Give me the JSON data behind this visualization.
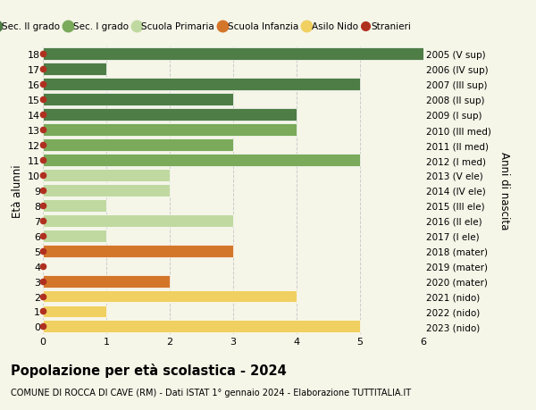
{
  "ages": [
    18,
    17,
    16,
    15,
    14,
    13,
    12,
    11,
    10,
    9,
    8,
    7,
    6,
    5,
    4,
    3,
    2,
    1,
    0
  ],
  "right_labels": [
    "2005 (V sup)",
    "2006 (IV sup)",
    "2007 (III sup)",
    "2008 (II sup)",
    "2009 (I sup)",
    "2010 (III med)",
    "2011 (II med)",
    "2012 (I med)",
    "2013 (V ele)",
    "2014 (IV ele)",
    "2015 (III ele)",
    "2016 (II ele)",
    "2017 (I ele)",
    "2018 (mater)",
    "2019 (mater)",
    "2020 (mater)",
    "2021 (nido)",
    "2022 (nido)",
    "2023 (nido)"
  ],
  "values": [
    6,
    1,
    5,
    3,
    4,
    4,
    3,
    5,
    2,
    2,
    1,
    3,
    1,
    3,
    0,
    2,
    4,
    1,
    5
  ],
  "bar_colors": [
    "#4e7d45",
    "#4e7d45",
    "#4e7d45",
    "#4e7d45",
    "#4e7d45",
    "#7aaa5a",
    "#7aaa5a",
    "#7aaa5a",
    "#c0d9a0",
    "#c0d9a0",
    "#c0d9a0",
    "#c0d9a0",
    "#c0d9a0",
    "#d4762a",
    "#d4762a",
    "#d4762a",
    "#f0d060",
    "#f0d060",
    "#f0d060"
  ],
  "dot_color": "#b03020",
  "grid_color": "#cccccc",
  "bg_color": "#f5f5e8",
  "title": "Popolazione per età scolastica - 2024",
  "subtitle": "COMUNE DI ROCCA DI CAVE (RM) - Dati ISTAT 1° gennaio 2024 - Elaborazione TUTTITALIA.IT",
  "ylabel_left": "Età alunni",
  "ylabel_right": "Anni di nascita",
  "xlim": [
    0,
    6
  ],
  "legend_labels": [
    "Sec. II grado",
    "Sec. I grado",
    "Scuola Primaria",
    "Scuola Infanzia",
    "Asilo Nido",
    "Stranieri"
  ],
  "legend_colors": [
    "#4e7d45",
    "#7aaa5a",
    "#c0d9a0",
    "#d4762a",
    "#f0d060",
    "#b03020"
  ],
  "bar_height": 0.82
}
